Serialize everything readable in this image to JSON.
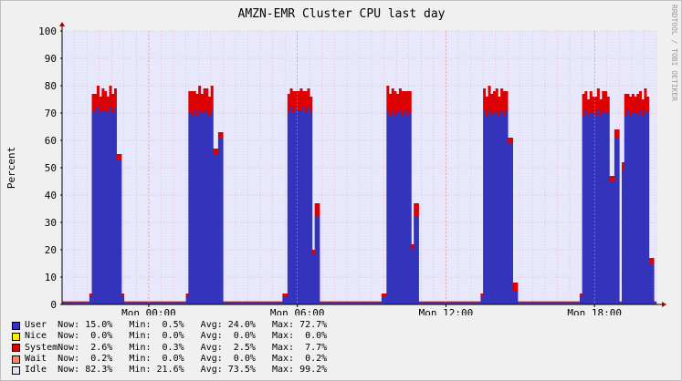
{
  "chart_data": {
    "type": "area",
    "title": "AMZN-EMR Cluster CPU last day",
    "watermark": "RRDTOOL / TOBI OETIKER",
    "ylabel": "Percent",
    "xlabel": "",
    "ylim": [
      0,
      100
    ],
    "yticks": [
      "0",
      "10",
      "20",
      "30",
      "40",
      "50",
      "60",
      "70",
      "80",
      "90",
      "100"
    ],
    "xticks": [
      {
        "label": "Mon 00:00",
        "hour": 3.5
      },
      {
        "label": "Mon 06:00",
        "hour": 9.5
      },
      {
        "label": "Mon 12:00",
        "hour": 15.5
      },
      {
        "label": "Mon 18:00",
        "hour": 21.5
      }
    ],
    "xrange_hours": [
      0,
      24
    ],
    "grid": true,
    "stacked": true,
    "bars_per_hour": 10,
    "idle_color": "#e8e8fc",
    "colors": {
      "user": "#3333bb",
      "system": "#dd0000"
    },
    "bursts": [
      {
        "start": 1.2,
        "end": 2.2,
        "user": 70,
        "system": 6,
        "tail": [
          [
            2.25,
            53,
            2
          ],
          [
            2.4,
            3,
            1
          ]
        ]
      },
      {
        "start": 5.1,
        "end": 6.1,
        "user": 69,
        "system": 7,
        "tail": [
          [
            6.15,
            55,
            2
          ],
          [
            6.35,
            61,
            2
          ]
        ]
      },
      {
        "start": 9.05,
        "end": 10.05,
        "user": 70,
        "system": 6,
        "tail": [
          [
            10.1,
            18,
            2
          ],
          [
            10.25,
            32,
            5
          ]
        ]
      },
      {
        "start": 13.05,
        "end": 14.05,
        "user": 69,
        "system": 7,
        "tail": [
          [
            14.1,
            20,
            2
          ],
          [
            14.25,
            32,
            5
          ]
        ]
      },
      {
        "start": 17.0,
        "end": 18.0,
        "user": 69,
        "system": 7,
        "tail": [
          [
            18.05,
            59,
            2
          ],
          [
            18.25,
            5,
            3
          ]
        ]
      },
      {
        "start": 21.0,
        "end": 22.1,
        "user": 69,
        "system": 6,
        "tail": [
          [
            22.15,
            45,
            2
          ],
          [
            22.35,
            61,
            3
          ],
          [
            22.6,
            49,
            3
          ]
        ]
      },
      {
        "start": 22.7,
        "end": 23.7,
        "user": 69,
        "system": 6,
        "tail": [
          [
            23.75,
            15,
            2
          ]
        ]
      }
    ],
    "series": [
      {
        "name": "User",
        "color": "#3333bb",
        "now": "15.0%",
        "min": "0.5%",
        "avg": "24.0%",
        "max": "72.7%"
      },
      {
        "name": "Nice",
        "color": "#ffee00",
        "now": "0.0%",
        "min": "0.0%",
        "avg": "0.0%",
        "max": "0.0%"
      },
      {
        "name": "System",
        "color": "#dd0000",
        "now": "2.6%",
        "min": "0.3%",
        "avg": "2.5%",
        "max": "7.7%"
      },
      {
        "name": "Wait",
        "color": "#ff8a60",
        "now": "0.2%",
        "min": "0.0%",
        "avg": "0.0%",
        "max": "0.2%"
      },
      {
        "name": "Idle",
        "color": "#e2e2f2",
        "now": "82.3%",
        "min": "21.6%",
        "avg": "73.5%",
        "max": "99.2%"
      }
    ]
  }
}
